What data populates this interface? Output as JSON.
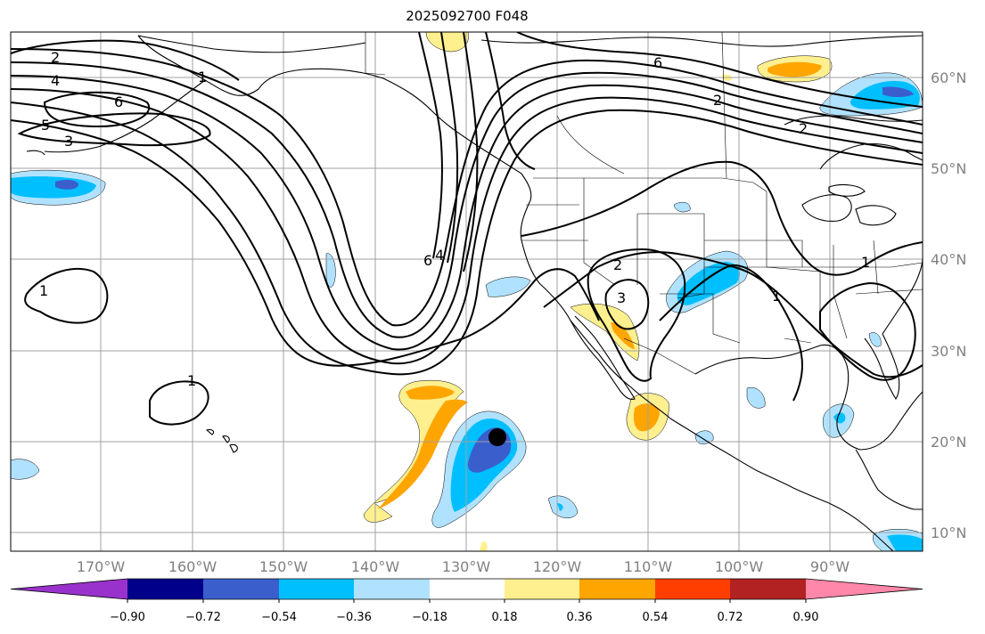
{
  "title": "2025092700 F048",
  "lon_ticks": [
    "170°W",
    "160°W",
    "150°W",
    "140°W",
    "130°W",
    "120°W",
    "110°W",
    "100°W",
    "90°W"
  ],
  "lat_ticks": [
    "60°N",
    "50°N",
    "40°N",
    "30°N",
    "20°N",
    "10°N"
  ],
  "colorbar": {
    "ticks": [
      "−0.90",
      "−0.72",
      "−0.54",
      "−0.36",
      "−0.18",
      "0.18",
      "0.36",
      "0.54",
      "0.72",
      "0.90"
    ],
    "colors": [
      "#9932cc",
      "#00008b",
      "#3a5fcd",
      "#00bfff",
      "#b0e2ff",
      "#ffffff",
      "#fff08f",
      "#ffa500",
      "#ff3e00",
      "#b22222",
      "#ff88aa"
    ]
  },
  "contour_labels": [
    "2",
    "4",
    "6",
    "5",
    "3",
    "1",
    "1",
    "1",
    "6",
    "6",
    "4",
    "2",
    "2",
    "3",
    "2",
    "1",
    "1"
  ],
  "colors": {
    "grid": "#a0a0a0",
    "contour": "#000000",
    "storm_marker": "#000000"
  }
}
